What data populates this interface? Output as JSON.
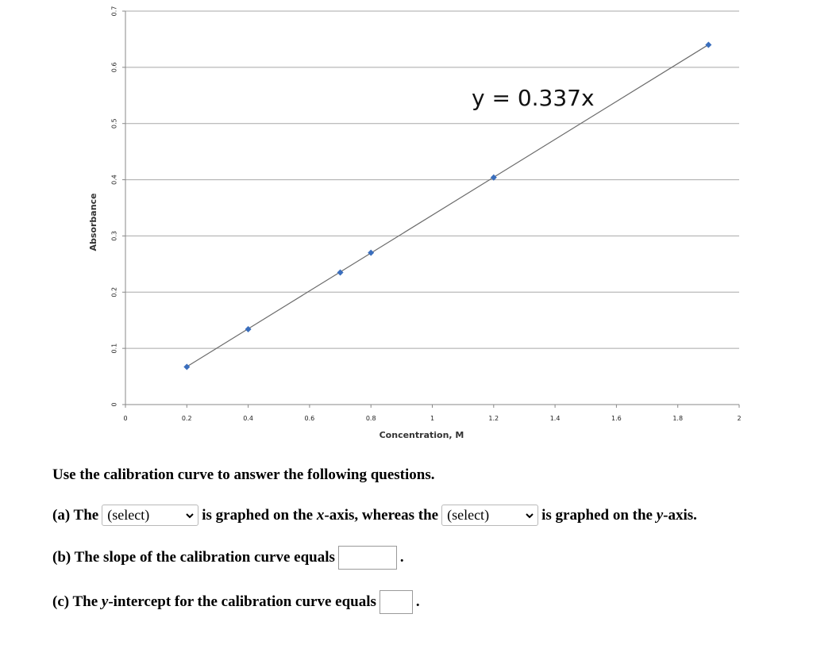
{
  "chart_data": {
    "type": "scatter",
    "title": "",
    "xlabel": "Concentration, M",
    "ylabel": "Absorbance",
    "xlim": [
      0,
      2
    ],
    "ylim": [
      0,
      0.7
    ],
    "xticks": [
      "0",
      "0.2",
      "0.4",
      "0.6",
      "0.8",
      "1",
      "1.2",
      "1.4",
      "1.6",
      "1.8",
      "2"
    ],
    "yticks": [
      "0",
      "0.1",
      "0.2",
      "0.3",
      "0.4",
      "0.5",
      "0.6",
      "0.7"
    ],
    "grid": "horizontal",
    "legend": "none",
    "series": [
      {
        "x": [
          0.2,
          0.4,
          0.7,
          0.8,
          1.2,
          1.9
        ],
        "y": [
          0.067,
          0.134,
          0.235,
          0.27,
          0.404,
          0.64
        ],
        "color": "#3a6ebd",
        "marker": "diamond"
      }
    ],
    "trendline": {
      "slope": 0.337,
      "intercept": 0,
      "x_range": [
        0.2,
        1.9
      ],
      "color": "#6b6b6b"
    },
    "annotation": "y = 0.337x"
  },
  "questions": {
    "intro": "Use the calibration curve to answer the following questions.",
    "a_prefix": "(a) The",
    "a_select1": "(select)",
    "a_middle_1": "is graphed on the",
    "a_axis_x": "x",
    "a_middle_2": "-axis, whereas the",
    "a_select2": "(select)",
    "a_suffix_1": "is graphed on the",
    "a_axis_y": "y",
    "a_suffix_2": "-axis.",
    "b_text": "(b) The slope of the calibration curve equals",
    "b_end": ".",
    "c_prefix": "(c) The",
    "c_axis": "y",
    "c_text": "-intercept for the calibration curve equals",
    "c_end": "."
  }
}
